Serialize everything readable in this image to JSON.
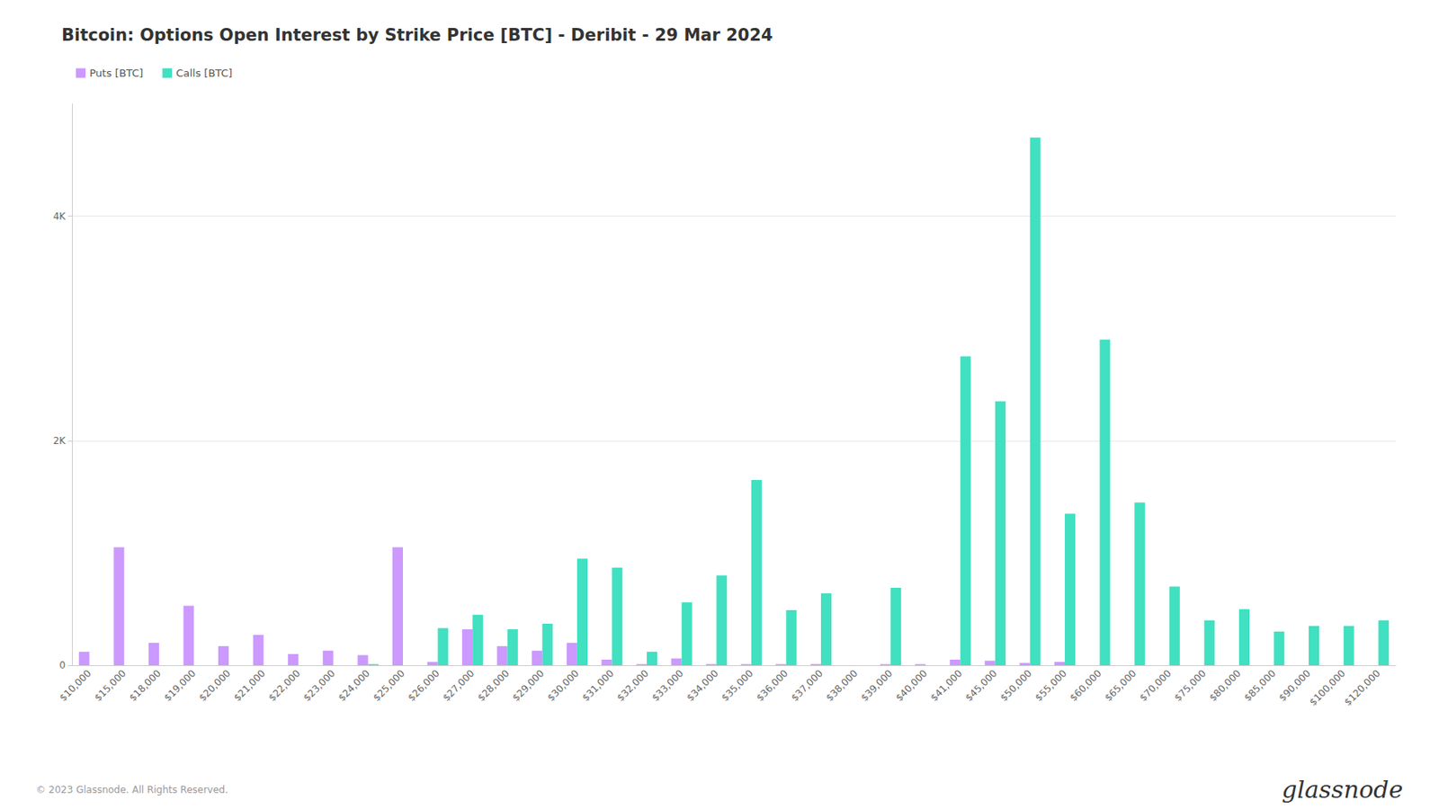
{
  "chart_data": {
    "type": "bar",
    "title": "Bitcoin: Options Open Interest by Strike Price [BTC] - Deribit - 29 Mar 2024",
    "categories": [
      "$10,000",
      "$15,000",
      "$18,000",
      "$19,000",
      "$20,000",
      "$21,000",
      "$22,000",
      "$23,000",
      "$24,000",
      "$25,000",
      "$26,000",
      "$27,000",
      "$28,000",
      "$29,000",
      "$30,000",
      "$31,000",
      "$32,000",
      "$33,000",
      "$34,000",
      "$35,000",
      "$36,000",
      "$37,000",
      "$38,000",
      "$39,000",
      "$40,000",
      "$41,000",
      "$45,000",
      "$50,000",
      "$55,000",
      "$60,000",
      "$65,000",
      "$70,000",
      "$75,000",
      "$80,000",
      "$85,000",
      "$90,000",
      "$100,000",
      "$120,000"
    ],
    "series": [
      {
        "name": "Puts [BTC]",
        "color": "#cc99ff",
        "values": [
          120,
          1050,
          200,
          530,
          170,
          270,
          100,
          130,
          90,
          1050,
          30,
          320,
          170,
          130,
          200,
          50,
          10,
          60,
          10,
          10,
          10,
          10,
          0,
          10,
          10,
          50,
          40,
          20,
          30,
          0,
          0,
          0,
          0,
          0,
          0,
          0,
          0,
          0
        ]
      },
      {
        "name": "Calls [BTC]",
        "color": "#40e0c0",
        "values": [
          0,
          0,
          0,
          0,
          0,
          0,
          0,
          0,
          10,
          0,
          330,
          450,
          320,
          370,
          950,
          870,
          120,
          560,
          800,
          1650,
          490,
          640,
          0,
          690,
          0,
          2750,
          2350,
          4700,
          1350,
          2900,
          1450,
          700,
          400,
          500,
          300,
          350,
          350,
          400
        ]
      }
    ],
    "ylim": [
      0,
      5000
    ],
    "yticks": [
      0,
      {
        "value": 2000,
        "label": "2K"
      },
      {
        "value": 4000,
        "label": "4K"
      }
    ],
    "grid": true,
    "legend": "upper left",
    "annotations": [
      "© 2023 Glassnode. All Rights Reserved.",
      "glassnode"
    ]
  }
}
